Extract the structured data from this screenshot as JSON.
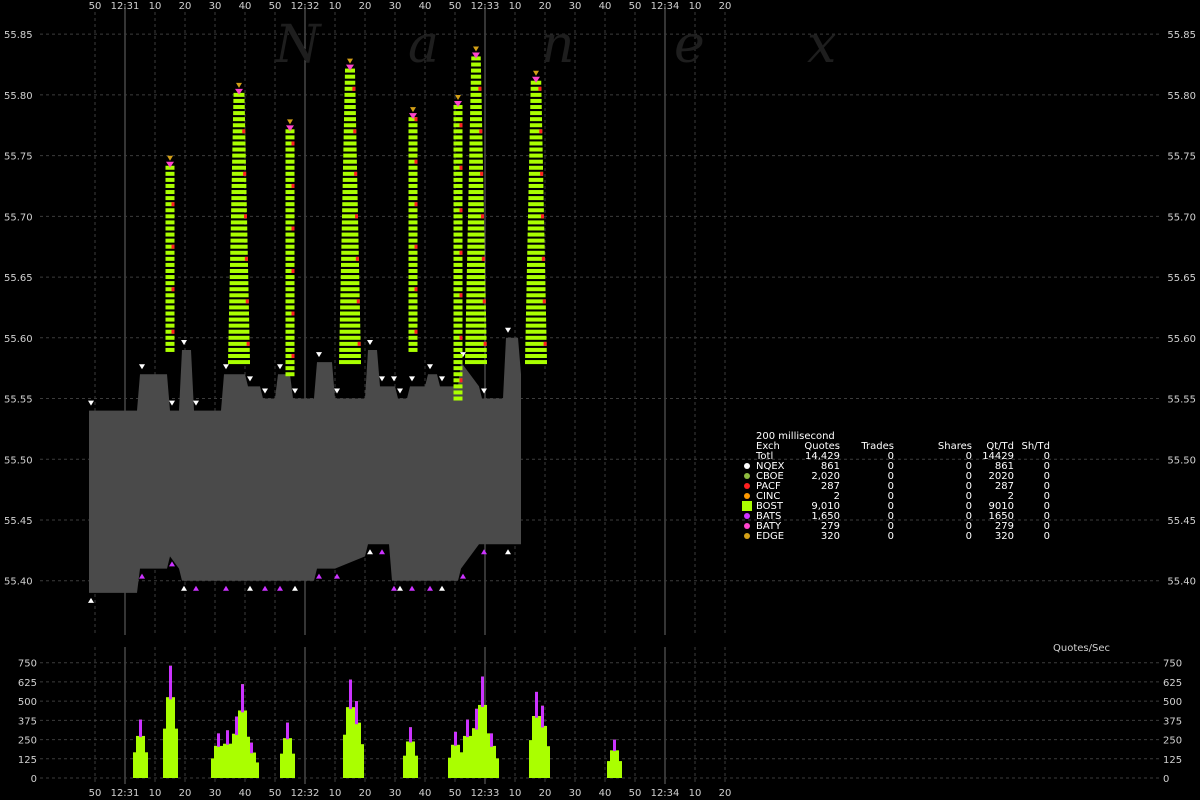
{
  "chart_data": {
    "type": "area",
    "watermark": [
      "N",
      "a",
      "n",
      "e",
      "x"
    ],
    "x_axis": {
      "labels": [
        "50",
        "12:31",
        "10",
        "20",
        "30",
        "40",
        "50",
        "12:32",
        "10",
        "20",
        "30",
        "40",
        "50",
        "12:33",
        "10",
        "20",
        "30",
        "40",
        "50",
        "12:34",
        "10",
        "20"
      ]
    },
    "price_axis": {
      "ylim": [
        55.38,
        55.86
      ],
      "labels": [
        "55.85",
        "55.80",
        "55.75",
        "55.70",
        "55.65",
        "55.60",
        "55.55",
        "55.50",
        "55.45",
        "55.40"
      ]
    },
    "quotes_axis": {
      "title": "Quotes/Sec",
      "ylim": [
        0,
        800
      ],
      "labels": [
        "750",
        "625",
        "500",
        "375",
        "250",
        "125",
        "0"
      ]
    },
    "nbbo": {
      "times": [
        -12,
        4,
        5,
        14,
        15,
        18,
        19,
        22,
        23,
        32,
        33,
        40,
        41,
        45,
        46,
        50,
        51,
        55,
        56,
        63,
        64,
        69,
        70,
        80,
        81,
        84,
        85,
        88,
        89,
        90,
        91,
        94,
        95,
        100,
        101,
        104,
        105,
        111,
        112,
        118,
        119,
        126,
        127,
        131,
        132
      ],
      "bid": [
        55.39,
        55.39,
        55.41,
        55.41,
        55.42,
        55.41,
        55.4,
        55.4,
        55.4,
        55.4,
        55.4,
        55.4,
        55.4,
        55.4,
        55.4,
        55.4,
        55.4,
        55.4,
        55.4,
        55.4,
        55.41,
        55.41,
        55.41,
        55.42,
        55.43,
        55.43,
        55.43,
        55.43,
        55.4,
        55.4,
        55.4,
        55.4,
        55.4,
        55.4,
        55.4,
        55.4,
        55.4,
        55.4,
        55.41,
        55.43,
        55.43,
        55.43,
        55.43,
        55.43,
        55.43
      ],
      "ask": [
        55.54,
        55.54,
        55.57,
        55.57,
        55.54,
        55.54,
        55.59,
        55.59,
        55.54,
        55.54,
        55.57,
        55.57,
        55.56,
        55.56,
        55.55,
        55.55,
        55.57,
        55.57,
        55.55,
        55.55,
        55.58,
        55.58,
        55.55,
        55.55,
        55.59,
        55.59,
        55.56,
        55.56,
        55.56,
        55.56,
        55.55,
        55.55,
        55.56,
        55.56,
        55.57,
        55.57,
        55.56,
        55.56,
        55.58,
        55.56,
        55.55,
        55.55,
        55.6,
        55.6,
        55.57
      ]
    },
    "stats": {
      "interval": "200 millisecond",
      "headers": [
        "Exch",
        "Quotes",
        "Trades",
        "Shares",
        "Qt/Td",
        "Sh/Td"
      ],
      "rows": [
        {
          "exch": "Totl",
          "quotes": "14,429",
          "trades": "0",
          "shares": "0",
          "qt_td": "14429",
          "sh_td": "0",
          "color": ""
        },
        {
          "exch": "NQEX",
          "quotes": "861",
          "trades": "0",
          "shares": "0",
          "qt_td": "861",
          "sh_td": "0",
          "color": "#ffffff"
        },
        {
          "exch": "CBOE",
          "quotes": "2,020",
          "trades": "0",
          "shares": "0",
          "qt_td": "2020",
          "sh_td": "0",
          "color": "#8fbc3f"
        },
        {
          "exch": "PACF",
          "quotes": "287",
          "trades": "0",
          "shares": "0",
          "qt_td": "287",
          "sh_td": "0",
          "color": "#ff2020"
        },
        {
          "exch": "CINC",
          "quotes": "2",
          "trades": "0",
          "shares": "0",
          "qt_td": "2",
          "sh_td": "0",
          "color": "#ff9900"
        },
        {
          "exch": "BOST",
          "quotes": "9,010",
          "trades": "0",
          "shares": "0",
          "qt_td": "9010",
          "sh_td": "0",
          "color": "#aaff00"
        },
        {
          "exch": "BATS",
          "quotes": "1,650",
          "trades": "0",
          "shares": "0",
          "qt_td": "1650",
          "sh_td": "0",
          "color": "#cc33ff"
        },
        {
          "exch": "BATY",
          "quotes": "279",
          "trades": "0",
          "shares": "0",
          "qt_td": "279",
          "sh_td": "0",
          "color": "#ff44cc"
        },
        {
          "exch": "EDGE",
          "quotes": "320",
          "trades": "0",
          "shares": "0",
          "qt_td": "320",
          "sh_td": "0",
          "color": "#d4a017"
        }
      ]
    },
    "bursts": [
      {
        "t": 15,
        "top": 55.74,
        "base": 55.59,
        "dense": false,
        "rate": 720
      },
      {
        "t": 38,
        "top": 55.8,
        "base": 55.58,
        "dense": true,
        "rate": 610
      },
      {
        "t": 55,
        "top": 55.77,
        "base": 55.57,
        "dense": false,
        "rate": 300
      },
      {
        "t": 75,
        "top": 55.82,
        "base": 55.58,
        "dense": true,
        "rate": 640
      },
      {
        "t": 96,
        "top": 55.78,
        "base": 55.59,
        "dense": false,
        "rate": 320
      },
      {
        "t": 111,
        "top": 55.79,
        "base": 55.55,
        "dense": false,
        "rate": 300
      },
      {
        "t": 117,
        "top": 55.83,
        "base": 55.58,
        "dense": true,
        "rate": 640
      },
      {
        "t": 137,
        "top": 55.81,
        "base": 55.58,
        "dense": true,
        "rate": 560
      }
    ],
    "quote_rate": [
      {
        "t": 5,
        "v": 380
      },
      {
        "t": 15,
        "v": 730
      },
      {
        "t": 31,
        "v": 290
      },
      {
        "t": 34,
        "v": 310
      },
      {
        "t": 37,
        "v": 400
      },
      {
        "t": 39,
        "v": 610
      },
      {
        "t": 42,
        "v": 230
      },
      {
        "t": 54,
        "v": 360
      },
      {
        "t": 75,
        "v": 640
      },
      {
        "t": 77,
        "v": 500
      },
      {
        "t": 95,
        "v": 330
      },
      {
        "t": 110,
        "v": 300
      },
      {
        "t": 114,
        "v": 380
      },
      {
        "t": 117,
        "v": 450
      },
      {
        "t": 119,
        "v": 660
      },
      {
        "t": 122,
        "v": 290
      },
      {
        "t": 137,
        "v": 560
      },
      {
        "t": 139,
        "v": 470
      },
      {
        "t": 163,
        "v": 250
      }
    ]
  }
}
